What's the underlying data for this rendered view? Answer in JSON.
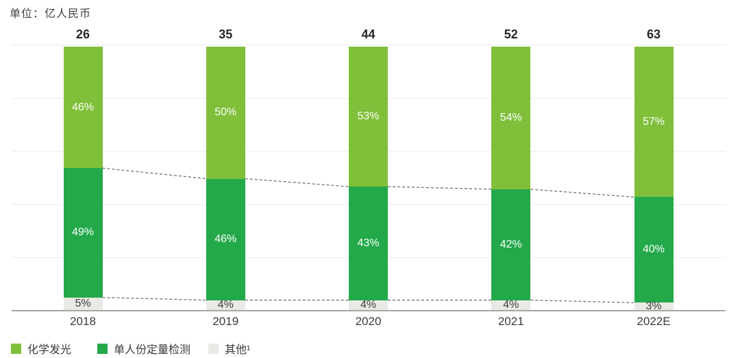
{
  "unit_label": "单位：亿人民币",
  "chart_data": {
    "type": "bar",
    "subtype": "stacked-100-percent-column",
    "title": "",
    "unit": "亿人民币",
    "categories": [
      "2018",
      "2019",
      "2020",
      "2021",
      "2022E"
    ],
    "totals": [
      26,
      35,
      44,
      52,
      63
    ],
    "series": [
      {
        "name": "化学发光",
        "color": "#7fbf3a",
        "label_color": "#ffffff",
        "values": [
          46,
          50,
          53,
          54,
          57
        ]
      },
      {
        "name": "单人份定量检测",
        "color": "#23a94a",
        "label_color": "#ffffff",
        "values": [
          49,
          46,
          43,
          42,
          40
        ]
      },
      {
        "name": "其他¹",
        "color": "#e9e9e5",
        "label_color": "#3d3d3d",
        "values": [
          5,
          4,
          4,
          4,
          3
        ]
      }
    ],
    "value_suffix": "%",
    "ylim": [
      0,
      100
    ],
    "grid": true,
    "legend_position": "bottom",
    "annotations": [
      "dashed connector lines between stacked segment boundaries across bars"
    ]
  },
  "colors": {
    "grid": "#ececec",
    "axis": "#a6a6a6",
    "dashed": "#666666",
    "axis_text": "#3a3a3a",
    "total_text": "#262626"
  }
}
